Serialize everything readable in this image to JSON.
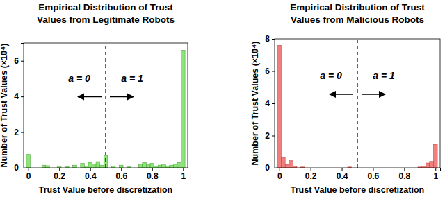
{
  "chart_data": [
    {
      "type": "histogram",
      "title": "Empirical Distribution of Trust Values from Legitimate Robots",
      "x_label": "Trust Value before discretization",
      "y_label": "Number of Trust Values (×10⁴)",
      "bins": [
        -0.0125,
        0.0125,
        0.0375,
        0.0625,
        0.0875,
        0.1125,
        0.1375,
        0.1625,
        0.1875,
        0.2125,
        0.2375,
        0.2625,
        0.2875,
        0.3125,
        0.3375,
        0.3625,
        0.3875,
        0.4125,
        0.4375,
        0.4625,
        0.4875,
        0.5125,
        0.5375,
        0.5625,
        0.5875,
        0.6125,
        0.6375,
        0.6625,
        0.6875,
        0.7125,
        0.7375,
        0.7625,
        0.7875,
        0.8125,
        0.8375,
        0.8625,
        0.8875,
        0.9125,
        0.9375,
        0.9625,
        0.9875,
        1.0125
      ],
      "counts": [
        0.75,
        0,
        0,
        0,
        0.15,
        0.12,
        0,
        0,
        0.1,
        0,
        0.08,
        0,
        0.15,
        0,
        0.25,
        0.1,
        0.3,
        0.2,
        0.35,
        0.15,
        0.7,
        0,
        0.1,
        0,
        0.15,
        0,
        0.05,
        0,
        0,
        0.2,
        0.3,
        0.2,
        0.25,
        0.1,
        0.15,
        0.2,
        0.1,
        0.15,
        0.2,
        0.3,
        6.6
      ],
      "color": "#8ee27a",
      "xlim": [
        -0.03,
        1.03
      ],
      "ylim": [
        0,
        7
      ],
      "xticks": [
        0,
        0.2,
        0.4,
        0.6,
        0.8,
        1
      ],
      "yticks": [
        0,
        2,
        4,
        6
      ],
      "threshold": 0.5,
      "annotations": [
        "a = 0",
        "a = 1"
      ]
    },
    {
      "type": "histogram",
      "title": "Empirical Distribution of Trust Values from Malicious Robots",
      "x_label": "Trust Value before discretization",
      "y_label": "Number of Trust Values (×10⁴)",
      "bins": [
        -0.0125,
        0.0125,
        0.0375,
        0.0625,
        0.0875,
        0.1125,
        0.1375,
        0.1625,
        0.1875,
        0.2125,
        0.2375,
        0.2625,
        0.2875,
        0.3125,
        0.3375,
        0.3625,
        0.3875,
        0.4125,
        0.4375,
        0.4625,
        0.4875,
        0.5125,
        0.5375,
        0.5625,
        0.5875,
        0.6125,
        0.6375,
        0.6625,
        0.6875,
        0.7125,
        0.7375,
        0.7625,
        0.7875,
        0.8125,
        0.8375,
        0.8625,
        0.8875,
        0.9125,
        0.9375,
        0.9625,
        0.9875,
        1.0125
      ],
      "counts": [
        7.6,
        0.65,
        0.2,
        0.45,
        0.1,
        0,
        0.05,
        0,
        0,
        0,
        0,
        0,
        0,
        0,
        0,
        0,
        0,
        0,
        0.05,
        0,
        0,
        0,
        0,
        0,
        0,
        0,
        0,
        0,
        0,
        0,
        0,
        0,
        0,
        0,
        0,
        0,
        0.05,
        0.1,
        0.3,
        0.4,
        1.45
      ],
      "color": "#f08080",
      "xlim": [
        -0.03,
        1.03
      ],
      "ylim": [
        0,
        8
      ],
      "xticks": [
        0,
        0.2,
        0.4,
        0.6,
        0.8,
        1
      ],
      "yticks": [
        0,
        2,
        4,
        6,
        8
      ],
      "threshold": 0.5,
      "annotations": [
        "a = 0",
        "a = 1"
      ]
    }
  ]
}
